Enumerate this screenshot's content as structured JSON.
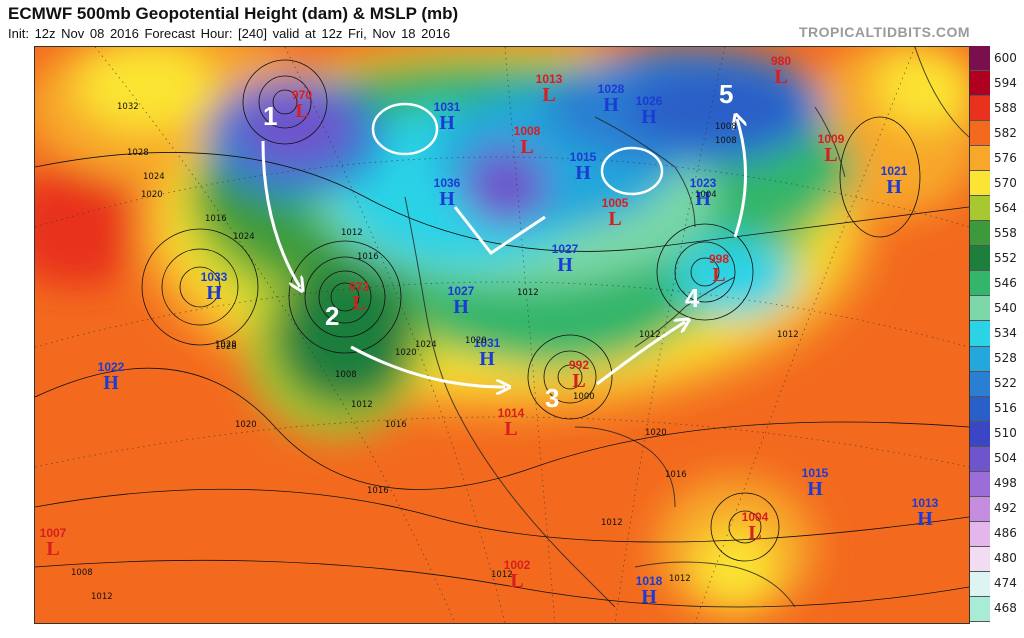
{
  "header": {
    "title": "ECMWF 500mb Geopotential Height (dam) & MSLP (mb)",
    "subtitle": "Init: 12z Nov 08 2016   Forecast Hour: [240]   valid at 12z Fri, Nov 18 2016",
    "brand": "TROPICALTIDBITS.COM"
  },
  "legend": {
    "labels": [
      "600",
      "594",
      "588",
      "582",
      "576",
      "570",
      "564",
      "558",
      "552",
      "546",
      "540",
      "534",
      "528",
      "522",
      "516",
      "510",
      "504",
      "498",
      "492",
      "486",
      "480",
      "474",
      "468"
    ],
    "colors": [
      "#7a0f4e",
      "#b0001f",
      "#e8321e",
      "#f36a1e",
      "#f7a72a",
      "#fbe433",
      "#a8c832",
      "#3c9a3a",
      "#1e7e3c",
      "#33b56b",
      "#7cd8a8",
      "#2bd3e6",
      "#23a7dc",
      "#2a7fd2",
      "#2a5ec8",
      "#3b46c4",
      "#6e55cc",
      "#9b6dd8",
      "#c58ce0",
      "#e3b6ec",
      "#f2dcf4",
      "#dcf4f2",
      "#a8ecd6"
    ]
  },
  "pressure_centers": [
    {
      "type": "L",
      "value": "970"
    },
    {
      "type": "H",
      "value": "1031"
    },
    {
      "type": "L",
      "value": "1013"
    },
    {
      "type": "H",
      "value": "1028"
    },
    {
      "type": "L",
      "value": "980"
    },
    {
      "type": "H",
      "value": "1026"
    },
    {
      "type": "L",
      "value": "1008"
    },
    {
      "type": "H",
      "value": "1015"
    },
    {
      "type": "L",
      "value": "1009"
    },
    {
      "type": "H",
      "value": "1021"
    },
    {
      "type": "H",
      "value": "1036"
    },
    {
      "type": "L",
      "value": "1005"
    },
    {
      "type": "H",
      "value": "1023"
    },
    {
      "type": "H",
      "value": "1027"
    },
    {
      "type": "L",
      "value": "998"
    },
    {
      "type": "H",
      "value": "1033"
    },
    {
      "type": "L",
      "value": "973"
    },
    {
      "type": "H",
      "value": "1027"
    },
    {
      "type": "H",
      "value": "1031"
    },
    {
      "type": "L",
      "value": "992"
    },
    {
      "type": "L",
      "value": "1014"
    },
    {
      "type": "H",
      "value": "1022"
    },
    {
      "type": "H",
      "value": "1015"
    },
    {
      "type": "H",
      "value": "1013"
    },
    {
      "type": "L",
      "value": "1004"
    },
    {
      "type": "L",
      "value": "1007"
    },
    {
      "type": "L",
      "value": "1002"
    },
    {
      "type": "H",
      "value": "1018"
    }
  ],
  "isobar_labels": [
    "1032",
    "1028",
    "1024",
    "1020",
    "1016",
    "1024",
    "1028",
    "1012",
    "1016",
    "1020",
    "1024",
    "1008",
    "1012",
    "1016",
    "1020",
    "1012",
    "1012",
    "1016",
    "1008",
    "1012",
    "1016",
    "1020",
    "1012",
    "1008",
    "1008",
    "1012",
    "1012",
    "1012",
    "1004",
    "1020",
    "1028",
    "1000"
  ],
  "annotations": {
    "track_steps": [
      "1",
      "2",
      "3",
      "4",
      "5"
    ]
  }
}
